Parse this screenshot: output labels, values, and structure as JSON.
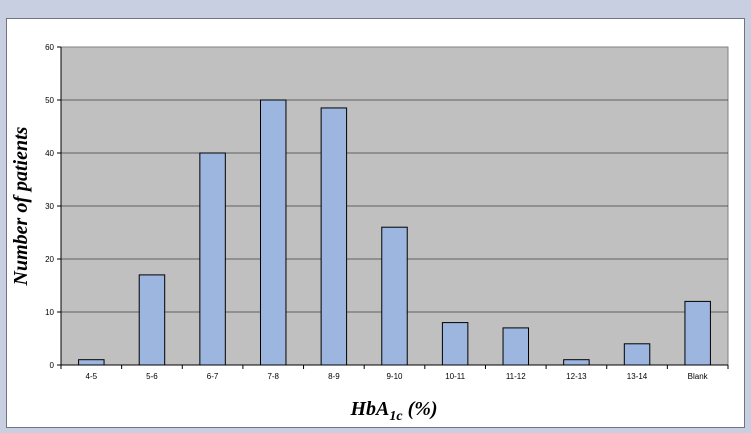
{
  "chart_data": {
    "type": "bar",
    "xlabel": "HbA1c (%)",
    "xlabel_parts": {
      "main": "HbA",
      "sub": "1c",
      "rest": " (%)"
    },
    "ylabel": "Number of patients",
    "categories": [
      "4-5",
      "5-6",
      "6-7",
      "7-8",
      "8-9",
      "9-10",
      "10-11",
      "11-12",
      "12-13",
      "13-14",
      "Blank"
    ],
    "values": [
      1,
      17,
      40,
      50,
      48.5,
      26,
      8,
      7,
      1,
      4,
      12
    ],
    "ylim": [
      0,
      60
    ],
    "yticks": [
      "0",
      "10",
      "20",
      "30",
      "40",
      "50",
      "60"
    ],
    "grid": true,
    "colors": {
      "bar_fill": "#9db6e0",
      "bar_stroke": "#000000",
      "plot_background": "#c0c0c0",
      "gridline": "#000000",
      "frame_background": "#c8cfe0"
    }
  }
}
